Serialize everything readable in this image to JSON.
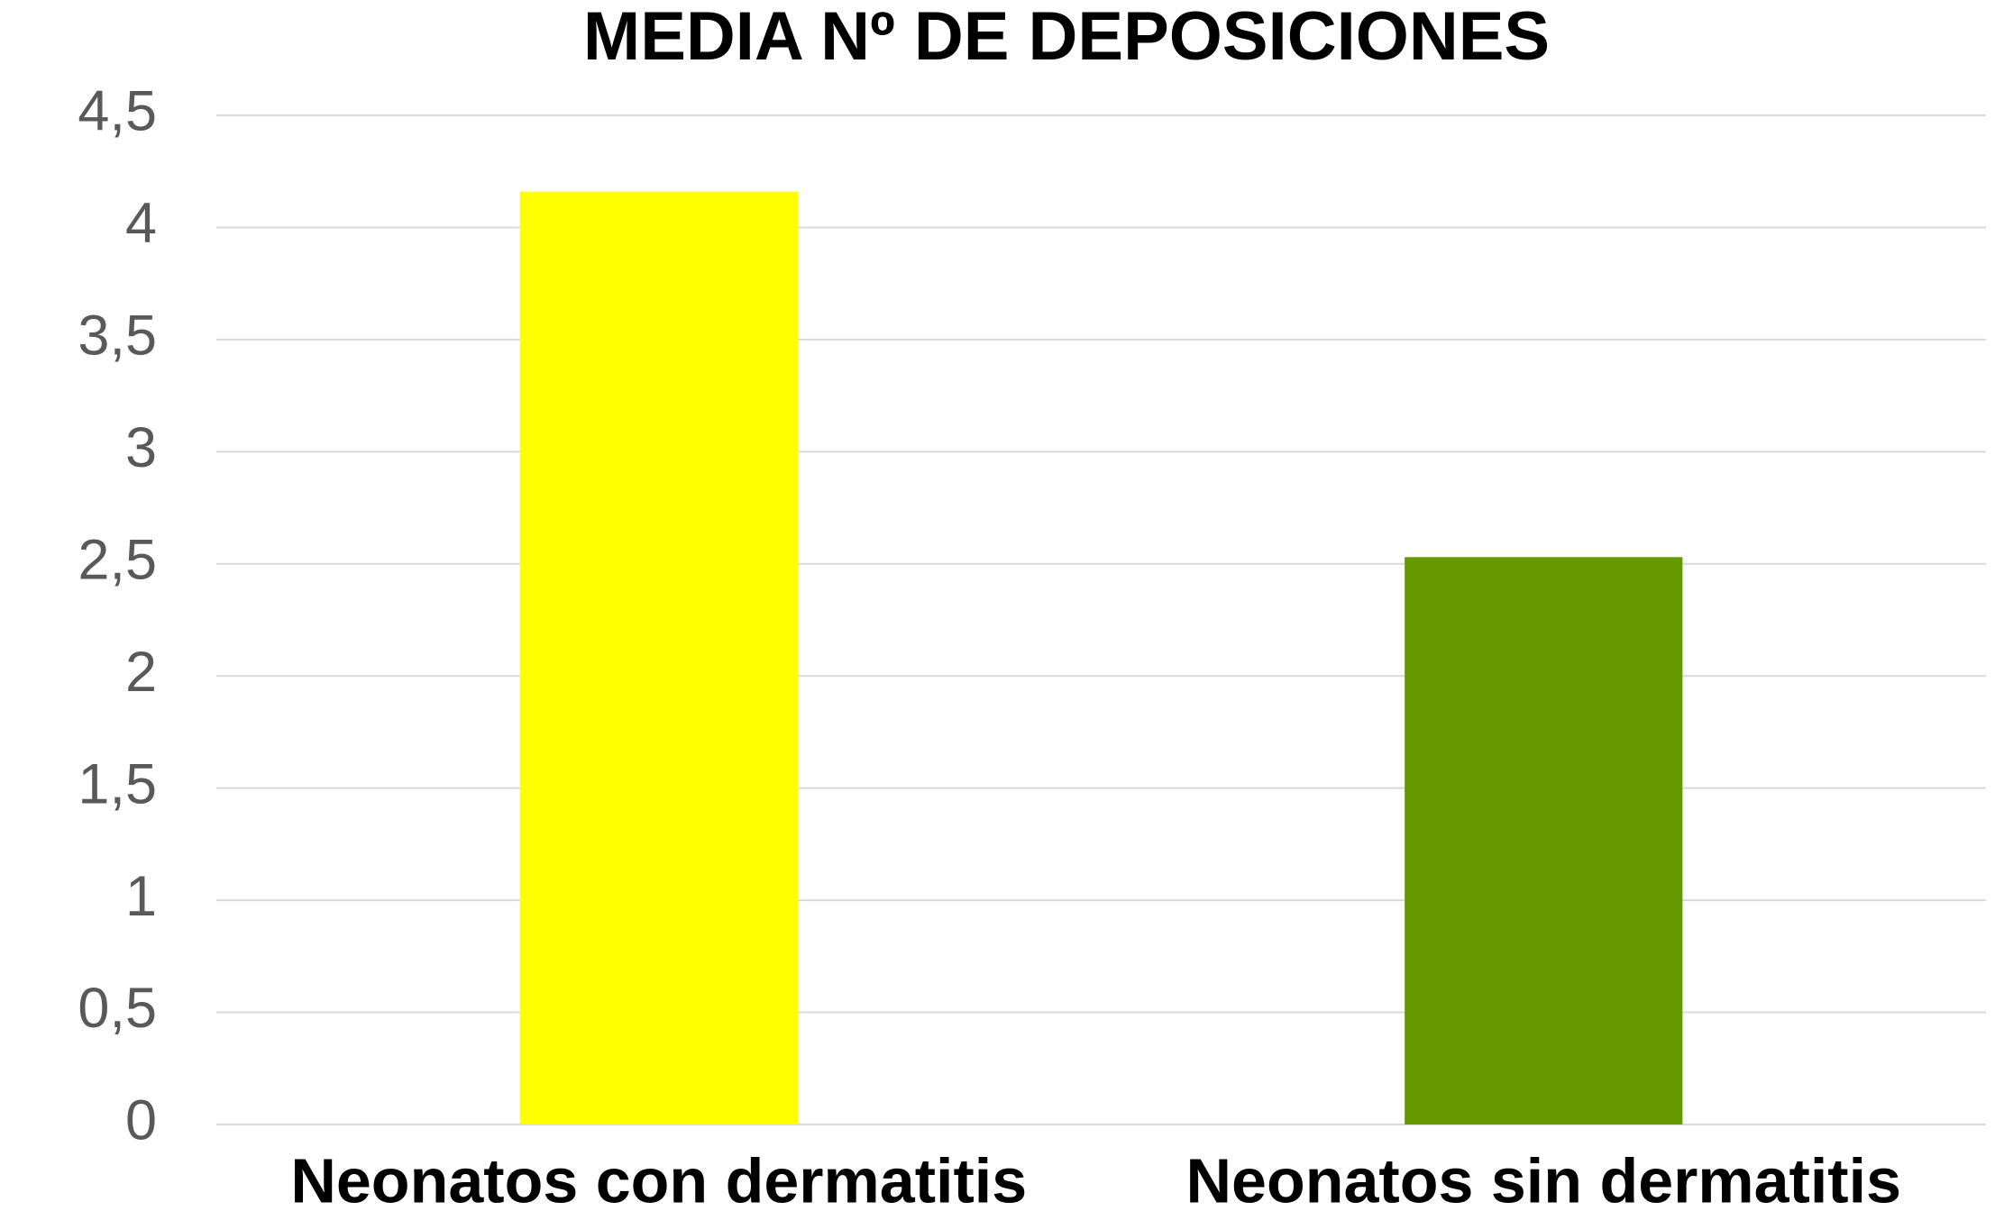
{
  "chart_data": {
    "type": "bar",
    "title": "MEDIA Nº DE DEPOSICIONES",
    "categories": [
      "Neonatos con dermatitis",
      "Neonatos sin dermatitis"
    ],
    "values": [
      4.16,
      2.53
    ],
    "colors": [
      "#ffff00",
      "#669900"
    ],
    "ylim": [
      0,
      4.5
    ],
    "yticks": [
      0,
      {
        "value": 0.5,
        "label": "0,5"
      },
      1,
      {
        "value": 1.5,
        "label": "1,5"
      },
      2,
      {
        "value": 2.5,
        "label": "2,5"
      },
      3,
      {
        "value": 3.5,
        "label": "3,5"
      },
      4,
      {
        "value": 4.5,
        "label": "4,5"
      }
    ],
    "grid": true
  }
}
